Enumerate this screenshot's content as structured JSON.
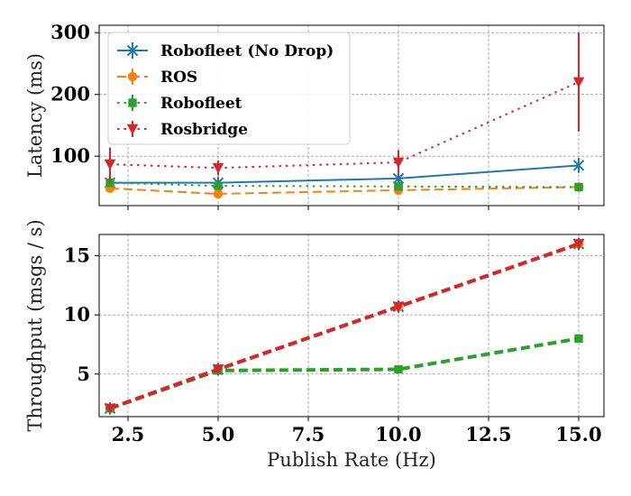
{
  "chart_data": [
    {
      "type": "line",
      "ylabel": "Latency (ms)",
      "xlabel": "",
      "xlim": [
        1.7,
        15.7
      ],
      "ylim": [
        20,
        312
      ],
      "xticks": [
        2.5,
        5.0,
        7.5,
        10.0,
        12.5,
        15.0
      ],
      "yticks": [
        100,
        200,
        300
      ],
      "ytick_labels": [
        "100",
        "200",
        "300"
      ],
      "grid": true,
      "legend_position": "top-left",
      "x": [
        2,
        5,
        10,
        15
      ],
      "series": [
        {
          "name": "Robofleet (No Drop)",
          "color": "#1f77b4",
          "linestyle": "solid",
          "marker": "x",
          "values": [
            57,
            57,
            64,
            85
          ],
          "errors": [
            5,
            5,
            6,
            12
          ]
        },
        {
          "name": "ROS",
          "color": "#ff7f0e",
          "linestyle": "dashed",
          "marker": "circle",
          "values": [
            48,
            39,
            45,
            50
          ],
          "errors": [
            3,
            3,
            3,
            3
          ]
        },
        {
          "name": "Robofleet",
          "color": "#2ca02c",
          "linestyle": "dotted",
          "marker": "square",
          "values": [
            57,
            52,
            51,
            50
          ],
          "errors": [
            4,
            4,
            4,
            4
          ]
        },
        {
          "name": "Rosbridge",
          "color": "#d62728",
          "linestyle": "dotted",
          "marker": "triangle-down",
          "values": [
            87,
            81,
            90,
            220
          ],
          "errors": [
            27,
            12,
            20,
            80
          ]
        }
      ]
    },
    {
      "type": "line",
      "ylabel": "Throughput (msgs / s)",
      "xlabel": "Publish Rate (Hz)",
      "xlim": [
        1.7,
        15.7
      ],
      "ylim": [
        1.4,
        16.8
      ],
      "xticks": [
        2.5,
        5.0,
        7.5,
        10.0,
        12.5,
        15.0
      ],
      "xtick_labels": [
        "2.5",
        "5.0",
        "7.5",
        "10.0",
        "12.5",
        "15.0"
      ],
      "yticks": [
        5,
        10,
        15
      ],
      "ytick_labels": [
        "5",
        "10",
        "15"
      ],
      "grid": true,
      "x": [
        2,
        5,
        10,
        15
      ],
      "series": [
        {
          "name": "Robofleet (No Drop)",
          "color": "#1f77b4",
          "linestyle": "dashed",
          "marker": "x",
          "values": [
            2.1,
            5.4,
            10.7,
            16.0
          ]
        },
        {
          "name": "ROS",
          "color": "#ff7f0e",
          "linestyle": "dashed",
          "marker": "circle",
          "values": [
            2.1,
            5.4,
            10.7,
            16.0
          ]
        },
        {
          "name": "Robofleet",
          "color": "#2ca02c",
          "linestyle": "dashed",
          "marker": "square",
          "values": [
            2.1,
            5.3,
            5.4,
            8.0
          ]
        },
        {
          "name": "Rosbridge",
          "color": "#d62728",
          "linestyle": "dashed",
          "marker": "triangle-down",
          "values": [
            2.1,
            5.4,
            10.7,
            16.0
          ]
        }
      ]
    }
  ]
}
